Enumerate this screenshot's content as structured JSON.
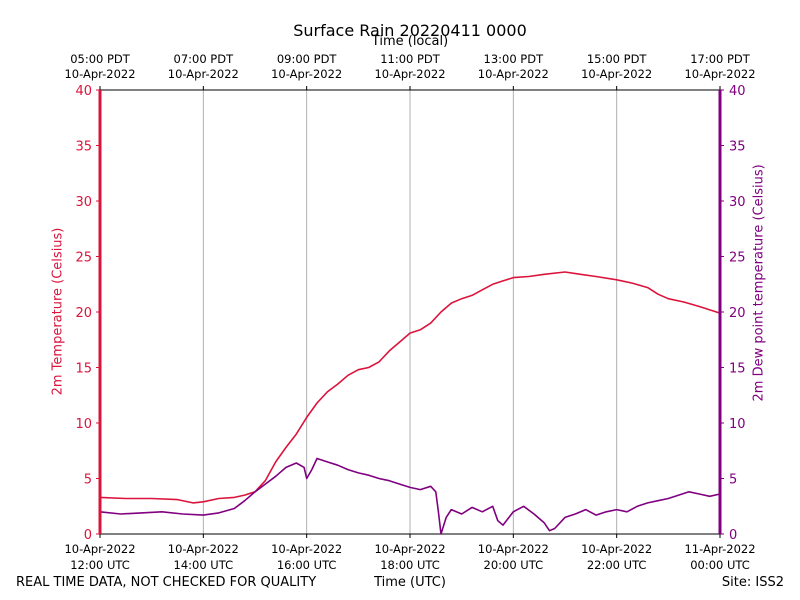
{
  "title": "Surface Rain 20220411 0000",
  "top_axis_label": "Time (local)",
  "bottom_axis_label": "Time (UTC)",
  "disclaimer": "REAL TIME DATA, NOT CHECKED FOR QUALITY",
  "site": "Site: ISS2",
  "colors": {
    "temperature": "#dc143c",
    "dewpoint": "#800080",
    "grid": "#b0b0b0",
    "axis": "#000000"
  },
  "chart_data": {
    "type": "line",
    "title": "Surface Rain 20220411 0000",
    "xlabel": "Time (UTC)",
    "xlabel_top": "Time (local)",
    "ylabel_left": "2m Temperature (Celsius)",
    "ylabel_right": "2m Dew point temperature (Celsius)",
    "xlim_utc_hours": [
      12,
      24
    ],
    "ylim": [
      0,
      40
    ],
    "yticks": [
      0,
      5,
      10,
      15,
      20,
      25,
      30,
      35,
      40
    ],
    "bottom_ticks": [
      {
        "hour": 12,
        "line1": "10-Apr-2022",
        "line2": "12:00 UTC"
      },
      {
        "hour": 14,
        "line1": "10-Apr-2022",
        "line2": "14:00 UTC"
      },
      {
        "hour": 16,
        "line1": "10-Apr-2022",
        "line2": "16:00 UTC"
      },
      {
        "hour": 18,
        "line1": "10-Apr-2022",
        "line2": "18:00 UTC"
      },
      {
        "hour": 20,
        "line1": "10-Apr-2022",
        "line2": "20:00 UTC"
      },
      {
        "hour": 22,
        "line1": "10-Apr-2022",
        "line2": "22:00 UTC"
      },
      {
        "hour": 24,
        "line1": "11-Apr-2022",
        "line2": "00:00 UTC"
      }
    ],
    "top_ticks": [
      {
        "hour": 12,
        "line1": "05:00 PDT",
        "line2": "10-Apr-2022"
      },
      {
        "hour": 14,
        "line1": "07:00 PDT",
        "line2": "10-Apr-2022"
      },
      {
        "hour": 16,
        "line1": "09:00 PDT",
        "line2": "10-Apr-2022"
      },
      {
        "hour": 18,
        "line1": "11:00 PDT",
        "line2": "10-Apr-2022"
      },
      {
        "hour": 20,
        "line1": "13:00 PDT",
        "line2": "10-Apr-2022"
      },
      {
        "hour": 22,
        "line1": "15:00 PDT",
        "line2": "10-Apr-2022"
      },
      {
        "hour": 24,
        "line1": "17:00 PDT",
        "line2": "10-Apr-2022"
      }
    ],
    "series": [
      {
        "name": "2m Temperature (Celsius)",
        "axis": "left",
        "color": "#dc143c",
        "x": [
          12.0,
          12.5,
          13.0,
          13.5,
          13.8,
          14.0,
          14.3,
          14.6,
          14.8,
          15.0,
          15.2,
          15.4,
          15.6,
          15.8,
          16.0,
          16.2,
          16.4,
          16.6,
          16.8,
          17.0,
          17.2,
          17.4,
          17.6,
          17.8,
          18.0,
          18.2,
          18.4,
          18.6,
          18.8,
          19.0,
          19.2,
          19.4,
          19.6,
          19.8,
          20.0,
          20.3,
          20.6,
          21.0,
          21.3,
          21.6,
          22.0,
          22.3,
          22.6,
          22.8,
          23.0,
          23.3,
          23.6,
          24.0
        ],
        "y": [
          3.3,
          3.2,
          3.2,
          3.1,
          2.8,
          2.9,
          3.2,
          3.3,
          3.5,
          3.8,
          4.8,
          6.5,
          7.8,
          9.0,
          10.5,
          11.8,
          12.8,
          13.5,
          14.3,
          14.8,
          15.0,
          15.5,
          16.5,
          17.3,
          18.1,
          18.4,
          19.0,
          20.0,
          20.8,
          21.2,
          21.5,
          22.0,
          22.5,
          22.8,
          23.1,
          23.2,
          23.4,
          23.6,
          23.4,
          23.2,
          22.9,
          22.6,
          22.2,
          21.6,
          21.2,
          20.9,
          20.5,
          19.9
        ]
      },
      {
        "name": "2m Dew point temperature (Celsius)",
        "axis": "right",
        "color": "#800080",
        "x": [
          12.0,
          12.4,
          12.8,
          13.2,
          13.6,
          14.0,
          14.3,
          14.6,
          14.8,
          15.0,
          15.2,
          15.4,
          15.6,
          15.8,
          15.95,
          16.0,
          16.1,
          16.2,
          16.4,
          16.6,
          16.8,
          17.0,
          17.2,
          17.4,
          17.6,
          17.8,
          18.0,
          18.2,
          18.4,
          18.5,
          18.55,
          18.6,
          18.7,
          18.8,
          19.0,
          19.2,
          19.4,
          19.6,
          19.7,
          19.8,
          20.0,
          20.2,
          20.4,
          20.6,
          20.7,
          20.8,
          21.0,
          21.2,
          21.4,
          21.6,
          21.8,
          22.0,
          22.2,
          22.4,
          22.6,
          22.8,
          23.0,
          23.2,
          23.4,
          23.6,
          23.8,
          24.0
        ],
        "y": [
          2.0,
          1.8,
          1.9,
          2.0,
          1.8,
          1.7,
          1.9,
          2.3,
          3.0,
          3.8,
          4.5,
          5.2,
          6.0,
          6.4,
          6.0,
          5.0,
          5.8,
          6.8,
          6.5,
          6.2,
          5.8,
          5.5,
          5.3,
          5.0,
          4.8,
          4.5,
          4.2,
          4.0,
          4.3,
          3.8,
          2.0,
          0.0,
          1.5,
          2.2,
          1.8,
          2.4,
          2.0,
          2.5,
          1.2,
          0.8,
          2.0,
          2.5,
          1.8,
          1.0,
          0.3,
          0.5,
          1.5,
          1.8,
          2.2,
          1.7,
          2.0,
          2.2,
          2.0,
          2.5,
          2.8,
          3.0,
          3.2,
          3.5,
          3.8,
          3.6,
          3.4,
          3.6
        ]
      }
    ]
  }
}
